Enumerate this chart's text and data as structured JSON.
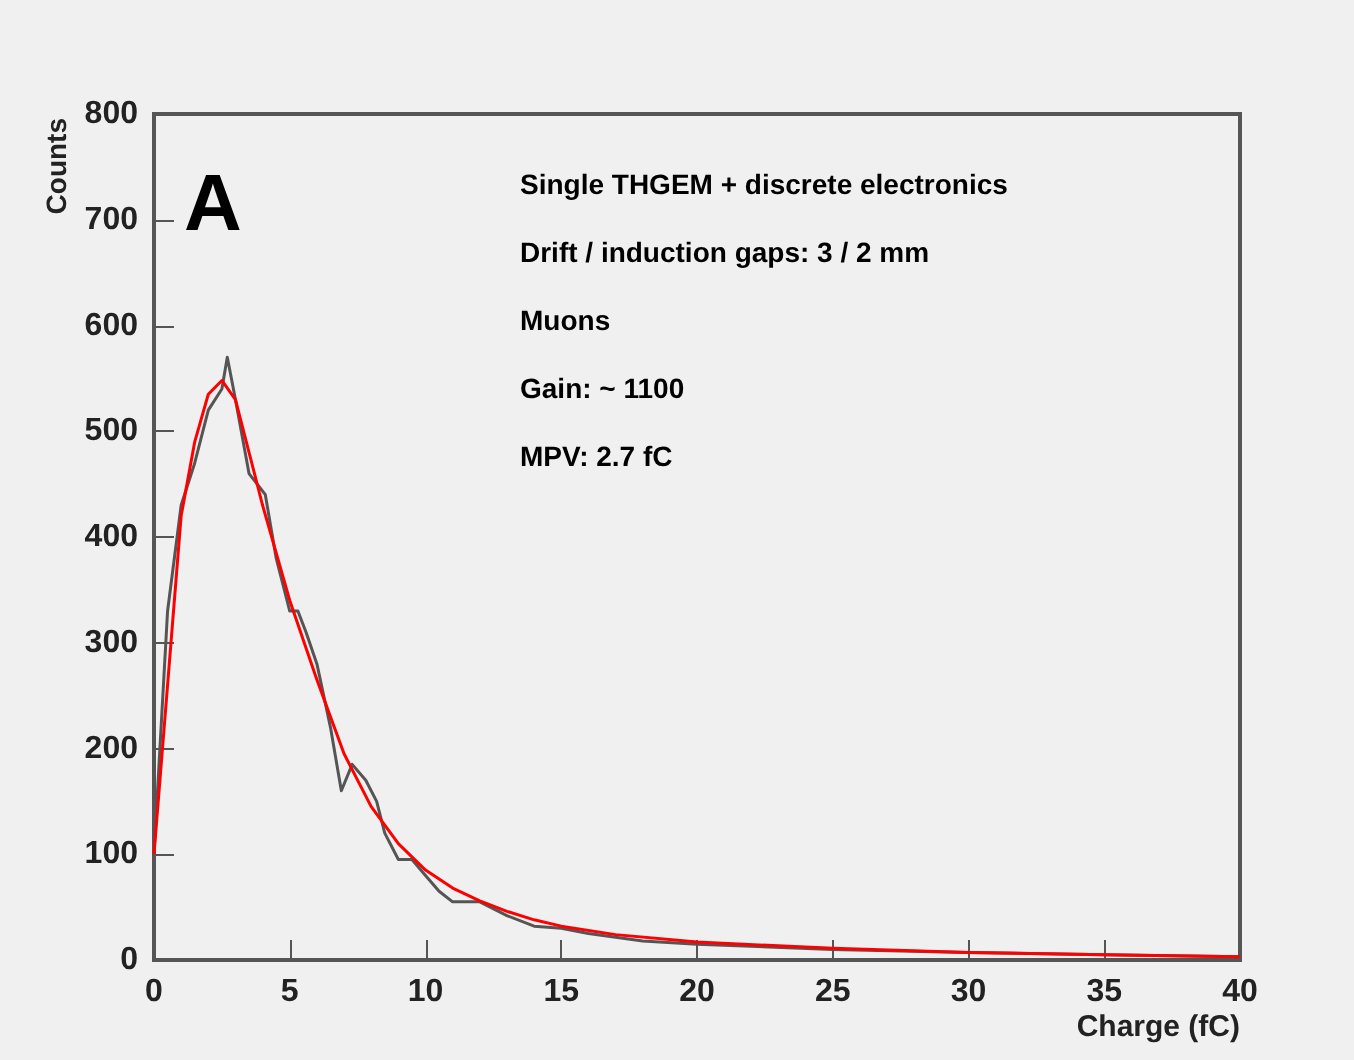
{
  "chart_data": {
    "type": "line",
    "xlabel": "Charge (fC)",
    "ylabel": "Counts",
    "xlim": [
      0,
      40
    ],
    "xticks": [
      0,
      5,
      10,
      15,
      20,
      25,
      30,
      35,
      40
    ],
    "ylim": [
      0,
      800
    ],
    "yticks": [
      0,
      100,
      200,
      300,
      400,
      500,
      600,
      700,
      800
    ],
    "grid": false,
    "marker": "none",
    "line_style": "solid",
    "annotations": [
      "A",
      "Single THGEM + discrete electronics",
      "Drift / induction gaps: 3 / 2 mm",
      "Muons",
      "Gain: ~ 1100",
      "MPV: 2.7 fC"
    ],
    "series": [
      {
        "color": "#555555",
        "x": [
          0,
          0.5,
          1,
          1.5,
          2,
          2.5,
          2.7,
          3,
          3.5,
          4.1,
          4.5,
          5,
          5.3,
          5.6,
          6,
          6.5,
          6.9,
          7.3,
          7.8,
          8.2,
          8.5,
          9,
          9.5,
          10,
          10.5,
          11,
          12,
          13,
          14,
          15,
          16,
          18,
          20,
          25,
          30,
          35,
          40
        ],
        "values": [
          100,
          330,
          430,
          470,
          520,
          540,
          570,
          530,
          460,
          440,
          380,
          330,
          330,
          310,
          280,
          220,
          160,
          185,
          170,
          150,
          120,
          95,
          95,
          80,
          65,
          55,
          55,
          42,
          32,
          30,
          25,
          18,
          15,
          10,
          7,
          5,
          3
        ]
      },
      {
        "color": "#ff0000",
        "x": [
          0,
          0.5,
          1,
          1.5,
          2,
          2.5,
          3,
          3.5,
          4,
          5,
          6,
          7,
          8,
          9,
          10,
          11,
          12,
          13,
          14,
          15,
          17,
          20,
          25,
          30,
          35,
          40
        ],
        "values": [
          100,
          260,
          420,
          490,
          535,
          548,
          530,
          480,
          430,
          340,
          265,
          195,
          145,
          110,
          85,
          68,
          56,
          46,
          38,
          32,
          24,
          17,
          11,
          7,
          5,
          3
        ]
      }
    ]
  }
}
